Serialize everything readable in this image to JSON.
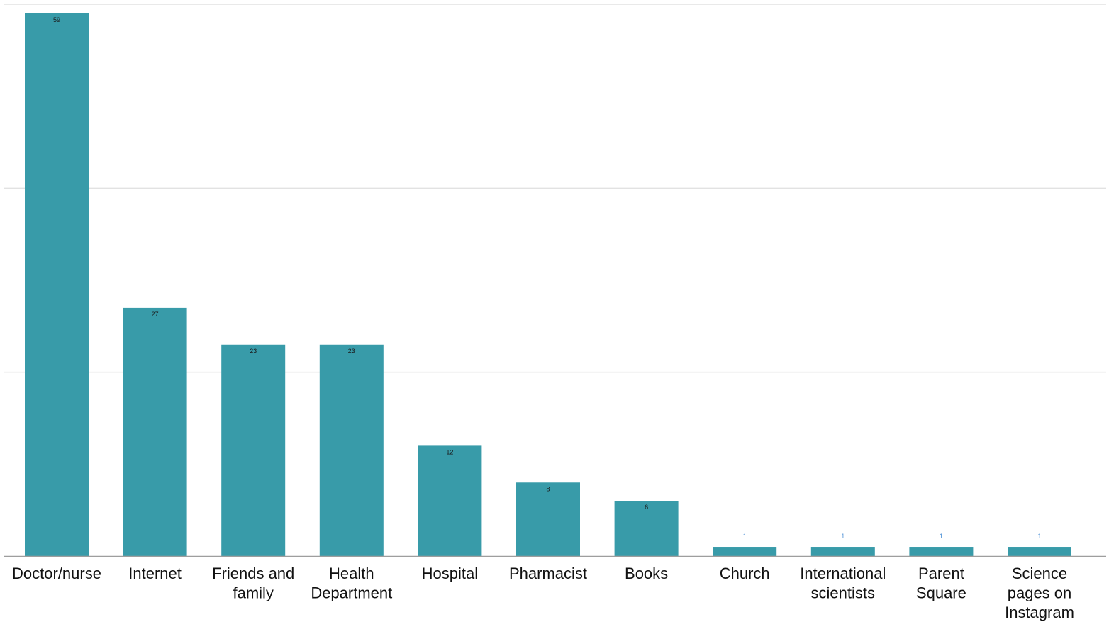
{
  "colors": {
    "bar": "#389ba9",
    "gridline": "#e2e2e2",
    "axis_line": "#9e9e9e",
    "label_inside": "#1a1a1a",
    "label_above": "#4a8fd6",
    "category_text": "#111111"
  },
  "chart_data": {
    "type": "bar",
    "title": "",
    "xlabel": "",
    "ylabel": "",
    "ylim": [
      0,
      60
    ],
    "grid": true,
    "gridlines": [
      20,
      40,
      60
    ],
    "y_tick_labels_shown": false,
    "legend": "none",
    "categories": [
      "Doctor/nurse",
      "Internet",
      "Friends and family",
      "Health Department",
      "Hospital",
      "Pharmacist",
      "Books",
      "Church",
      "International scientists",
      "Parent Square",
      "Science pages on Instagram"
    ],
    "category_label_lines": [
      [
        "Doctor/nurse"
      ],
      [
        "Internet"
      ],
      [
        "Friends and",
        "family"
      ],
      [
        "Health",
        "Department"
      ],
      [
        "Hospital"
      ],
      [
        "Pharmacist"
      ],
      [
        "Books"
      ],
      [
        "Church"
      ],
      [
        "International",
        "scientists"
      ],
      [
        "Parent",
        "Square"
      ],
      [
        "Science",
        "pages on",
        "Instagram"
      ]
    ],
    "values": [
      59,
      27,
      23,
      23,
      12,
      8,
      6,
      1,
      1,
      1,
      1
    ],
    "data_labels": [
      "59",
      "27",
      "23",
      "23",
      "12",
      "8",
      "6",
      "1",
      "1",
      "1",
      "1"
    ]
  }
}
